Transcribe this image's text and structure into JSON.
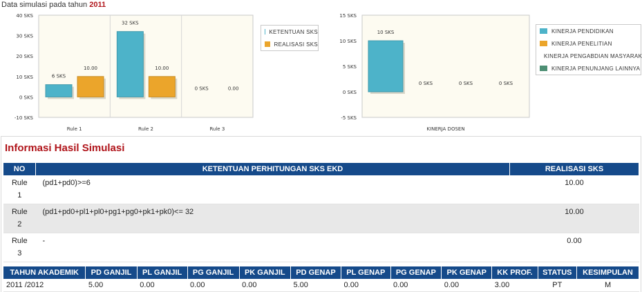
{
  "intro": {
    "text": "Data simulasi pada tahun",
    "year": "2011"
  },
  "chart_data": [
    {
      "type": "bar",
      "categories": [
        "Rule 1",
        "Rule 2",
        "Rule 3"
      ],
      "series": [
        {
          "name": "KETENTUAN SKS",
          "values": [
            6,
            32,
            0
          ],
          "labels": [
            "6 SKS",
            "32 SKS",
            "0 SKS"
          ],
          "color": "#4db3c9"
        },
        {
          "name": "REALISASI SKS",
          "values": [
            10,
            10,
            0
          ],
          "labels": [
            "10.00",
            "10.00",
            "0.00"
          ],
          "color": "#eba52b"
        }
      ],
      "yticks": [
        "40 SKS",
        "30 SKS",
        "20 SKS",
        "10 SKS",
        "0 SKS",
        "-10 SKS"
      ],
      "ylim": [
        -10,
        40
      ],
      "grid": false
    },
    {
      "type": "bar",
      "categories": [
        "KINERJA DOSEN"
      ],
      "series": [
        {
          "name": "KINERJA PENDIDIKAN",
          "values": [
            10
          ],
          "labels": [
            "10 SKS"
          ],
          "color": "#4db3c9"
        },
        {
          "name": "KINERJA PENELITIAN",
          "values": [
            0
          ],
          "labels": [
            "0 SKS"
          ],
          "color": "#eba52b"
        },
        {
          "name": "KINERJA PENGABDIAN MASYARAKAT",
          "values": [
            0
          ],
          "labels": [
            "0 SKS"
          ],
          "color": "#c8bd8a"
        },
        {
          "name": "KINERJA PENUNJANG LAINNYA",
          "values": [
            0
          ],
          "labels": [
            "0 SKS"
          ],
          "color": "#4d8f74"
        }
      ],
      "yticks": [
        "15 SKS",
        "10 SKS",
        "5 SKS",
        "0 SKS",
        "-5 SKS"
      ],
      "ylim": [
        -5,
        15
      ],
      "grid": false
    }
  ],
  "info": {
    "title": "Informasi Hasil Simulasi",
    "headers": {
      "no": "NO",
      "rule": "KETENTUAN PERHITUNGAN SKS EKD",
      "real": "REALISASI SKS"
    },
    "rows": [
      {
        "no1": "Rule",
        "no2": "1",
        "expr": "(pd1+pd0)>=6",
        "real": "10.00"
      },
      {
        "no1": "Rule",
        "no2": "2",
        "expr": "(pd1+pd0+pl1+pl0+pg1+pg0+pk1+pk0)<= 32",
        "real": "10.00"
      },
      {
        "no1": "Rule",
        "no2": "3",
        "expr": "-",
        "real": "0.00"
      }
    ]
  },
  "summary": {
    "headers": [
      "TAHUN AKADEMIK",
      "PD GANJIL",
      "PL GANJIL",
      "PG GANJIL",
      "PK GANJIL",
      "PD GENAP",
      "PL GENAP",
      "PG GENAP",
      "PK GENAP",
      "KK PROF.",
      "STATUS",
      "KESIMPULAN"
    ],
    "row": [
      "2011 /2012",
      "5.00",
      "0.00",
      "0.00",
      "0.00",
      "5.00",
      "0.00",
      "0.00",
      "0.00",
      "3.00",
      "PT",
      "M"
    ]
  }
}
